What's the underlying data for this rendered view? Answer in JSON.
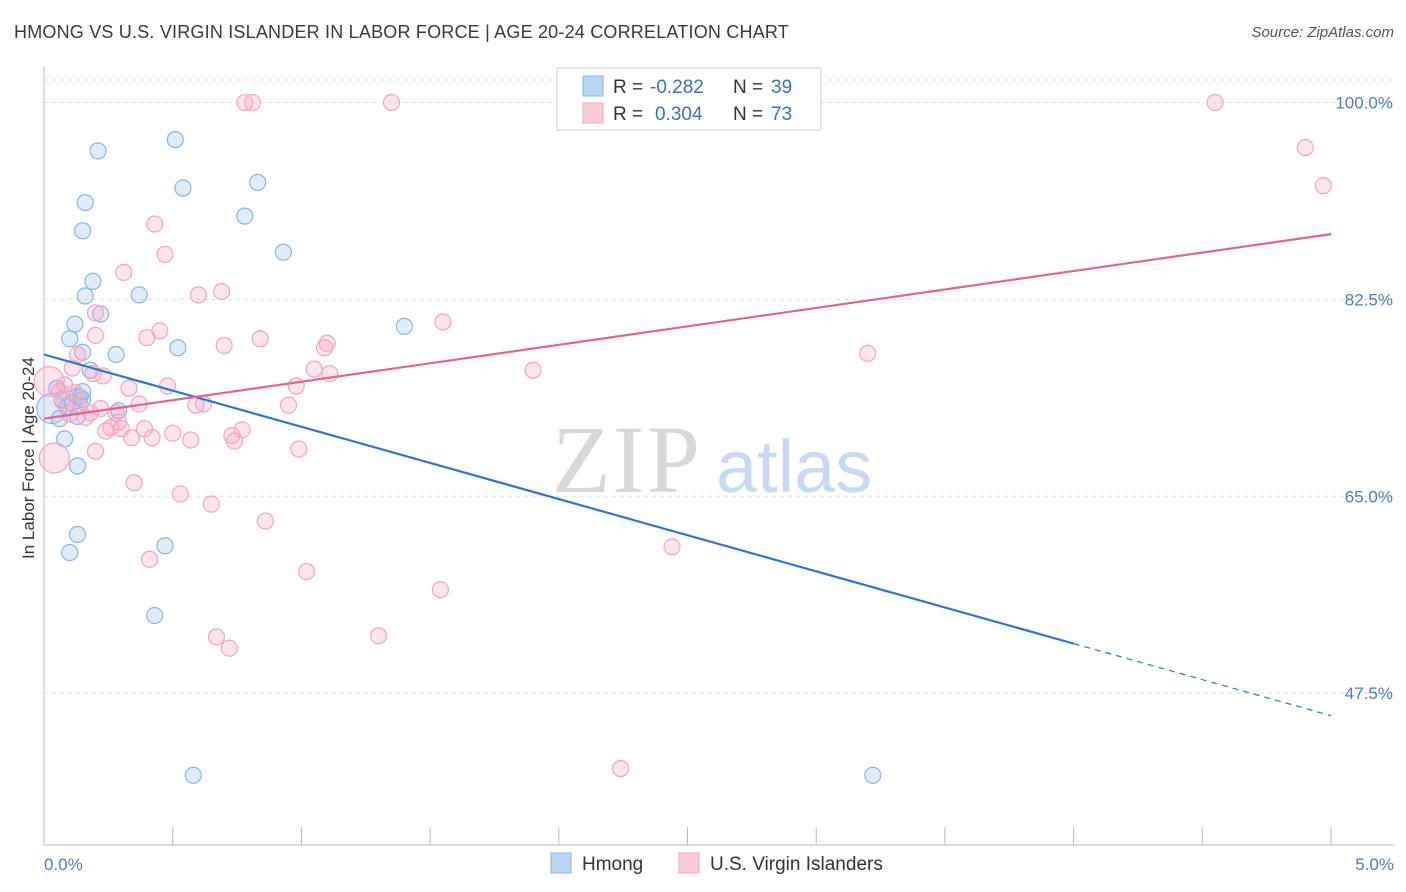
{
  "chart_data": {
    "type": "scatter",
    "title": "HMONG VS U.S. VIRGIN ISLANDER IN LABOR FORCE | AGE 20-24 CORRELATION CHART",
    "source": "Source: ZipAtlas.com",
    "ylabel": "In Labor Force | Age 20-24",
    "xlabel": "",
    "xlim": [
      0.0,
      5.0
    ],
    "ylim": [
      34.0,
      102.0
    ],
    "x_tick_labels": [
      "0.0%",
      "5.0%"
    ],
    "y_ticks": [
      47.5,
      65.0,
      82.5,
      100.0
    ],
    "y_tick_labels": [
      "47.5%",
      "65.0%",
      "82.5%",
      "100.0%"
    ],
    "grid": true,
    "legend_position": "top-center",
    "watermark": "ZIPatlas",
    "series": [
      {
        "name": "Hmong",
        "color": "#8ab4e8",
        "line_color": "#2f74d0",
        "R": "-0.282",
        "N": "39",
        "trend": {
          "x0": 0.0,
          "y0": 77.6,
          "x1": 4.0,
          "y1": 51.9,
          "dash_to_x": 5.0,
          "dash_to_y": 45.5
        },
        "points": [
          {
            "x": 0.03,
            "y": 72.8
          },
          {
            "x": 0.05,
            "y": 74.6
          },
          {
            "x": 0.06,
            "y": 71.9
          },
          {
            "x": 0.07,
            "y": 73.6
          },
          {
            "x": 0.08,
            "y": 70.1
          },
          {
            "x": 0.09,
            "y": 72.9
          },
          {
            "x": 0.1,
            "y": 79.0
          },
          {
            "x": 0.1,
            "y": 60.0
          },
          {
            "x": 0.11,
            "y": 73.3
          },
          {
            "x": 0.12,
            "y": 80.3
          },
          {
            "x": 0.13,
            "y": 72.1
          },
          {
            "x": 0.13,
            "y": 73.9
          },
          {
            "x": 0.15,
            "y": 88.6
          },
          {
            "x": 0.13,
            "y": 67.7
          },
          {
            "x": 0.13,
            "y": 61.6
          },
          {
            "x": 0.14,
            "y": 73.8
          },
          {
            "x": 0.15,
            "y": 77.8
          },
          {
            "x": 0.15,
            "y": 73.6
          },
          {
            "x": 0.15,
            "y": 74.3
          },
          {
            "x": 0.16,
            "y": 82.8
          },
          {
            "x": 0.16,
            "y": 91.1
          },
          {
            "x": 0.18,
            "y": 76.2
          },
          {
            "x": 0.19,
            "y": 84.1
          },
          {
            "x": 0.21,
            "y": 95.7
          },
          {
            "x": 0.22,
            "y": 81.2
          },
          {
            "x": 0.28,
            "y": 77.6
          },
          {
            "x": 0.29,
            "y": 72.6
          },
          {
            "x": 0.37,
            "y": 82.9
          },
          {
            "x": 0.43,
            "y": 54.4
          },
          {
            "x": 0.47,
            "y": 60.6
          },
          {
            "x": 0.51,
            "y": 96.7
          },
          {
            "x": 0.52,
            "y": 78.2
          },
          {
            "x": 0.54,
            "y": 92.4
          },
          {
            "x": 0.58,
            "y": 40.2
          },
          {
            "x": 0.78,
            "y": 89.9
          },
          {
            "x": 0.83,
            "y": 92.9
          },
          {
            "x": 0.93,
            "y": 86.7
          },
          {
            "x": 1.4,
            "y": 80.1
          },
          {
            "x": 3.22,
            "y": 40.2
          }
        ]
      },
      {
        "name": "U.S. Virgin Islanders",
        "color": "#f4a5bf",
        "line_color": "#e0668f",
        "R": "0.304",
        "N": "73",
        "trend": {
          "x0": 0.0,
          "y0": 71.9,
          "x1": 5.0,
          "y1": 88.3
        },
        "points": [
          {
            "x": 0.02,
            "y": 75.2
          },
          {
            "x": 0.04,
            "y": 68.4
          },
          {
            "x": 0.06,
            "y": 74.3
          },
          {
            "x": 0.07,
            "y": 73.5
          },
          {
            "x": 0.08,
            "y": 74.9
          },
          {
            "x": 0.1,
            "y": 72.3
          },
          {
            "x": 0.11,
            "y": 76.4
          },
          {
            "x": 0.12,
            "y": 74.2
          },
          {
            "x": 0.13,
            "y": 77.6
          },
          {
            "x": 0.14,
            "y": 73.1
          },
          {
            "x": 0.16,
            "y": 72.0
          },
          {
            "x": 0.18,
            "y": 72.4
          },
          {
            "x": 0.19,
            "y": 75.9
          },
          {
            "x": 0.2,
            "y": 79.3
          },
          {
            "x": 0.2,
            "y": 81.3
          },
          {
            "x": 0.22,
            "y": 72.8
          },
          {
            "x": 0.23,
            "y": 75.7
          },
          {
            "x": 0.24,
            "y": 70.8
          },
          {
            "x": 0.26,
            "y": 71.1
          },
          {
            "x": 0.28,
            "y": 72.4
          },
          {
            "x": 0.29,
            "y": 71.6
          },
          {
            "x": 0.3,
            "y": 71.0
          },
          {
            "x": 0.31,
            "y": 84.9
          },
          {
            "x": 0.33,
            "y": 74.6
          },
          {
            "x": 0.34,
            "y": 70.2
          },
          {
            "x": 0.35,
            "y": 66.2
          },
          {
            "x": 0.37,
            "y": 73.2
          },
          {
            "x": 0.39,
            "y": 71.0
          },
          {
            "x": 0.4,
            "y": 79.1
          },
          {
            "x": 0.41,
            "y": 59.4
          },
          {
            "x": 0.42,
            "y": 70.2
          },
          {
            "x": 0.43,
            "y": 89.2
          },
          {
            "x": 0.45,
            "y": 79.7
          },
          {
            "x": 0.47,
            "y": 86.5
          },
          {
            "x": 0.48,
            "y": 74.8
          },
          {
            "x": 0.5,
            "y": 70.6
          },
          {
            "x": 0.53,
            "y": 65.2
          },
          {
            "x": 0.57,
            "y": 70.0
          },
          {
            "x": 0.59,
            "y": 73.1
          },
          {
            "x": 0.6,
            "y": 82.9
          },
          {
            "x": 0.62,
            "y": 73.2
          },
          {
            "x": 0.65,
            "y": 64.3
          },
          {
            "x": 0.67,
            "y": 52.5
          },
          {
            "x": 0.69,
            "y": 83.2
          },
          {
            "x": 0.7,
            "y": 78.4
          },
          {
            "x": 0.72,
            "y": 51.5
          },
          {
            "x": 0.73,
            "y": 70.4
          },
          {
            "x": 0.74,
            "y": 69.9
          },
          {
            "x": 0.77,
            "y": 70.9
          },
          {
            "x": 0.78,
            "y": 100.0
          },
          {
            "x": 0.81,
            "y": 100.0
          },
          {
            "x": 0.84,
            "y": 79.0
          },
          {
            "x": 0.86,
            "y": 62.8
          },
          {
            "x": 0.95,
            "y": 73.1
          },
          {
            "x": 0.98,
            "y": 74.8
          },
          {
            "x": 0.99,
            "y": 69.2
          },
          {
            "x": 1.02,
            "y": 58.3
          },
          {
            "x": 1.05,
            "y": 76.3
          },
          {
            "x": 1.09,
            "y": 78.2
          },
          {
            "x": 1.1,
            "y": 78.6
          },
          {
            "x": 1.11,
            "y": 75.9
          },
          {
            "x": 1.3,
            "y": 52.6
          },
          {
            "x": 1.35,
            "y": 100.0
          },
          {
            "x": 1.54,
            "y": 56.7
          },
          {
            "x": 1.55,
            "y": 80.5
          },
          {
            "x": 1.9,
            "y": 76.2
          },
          {
            "x": 2.44,
            "y": 60.5
          },
          {
            "x": 2.24,
            "y": 40.8
          },
          {
            "x": 3.2,
            "y": 77.7
          },
          {
            "x": 4.55,
            "y": 100.0
          },
          {
            "x": 4.9,
            "y": 96.0
          },
          {
            "x": 4.97,
            "y": 92.6
          },
          {
            "x": 0.2,
            "y": 69.0
          }
        ]
      }
    ]
  }
}
